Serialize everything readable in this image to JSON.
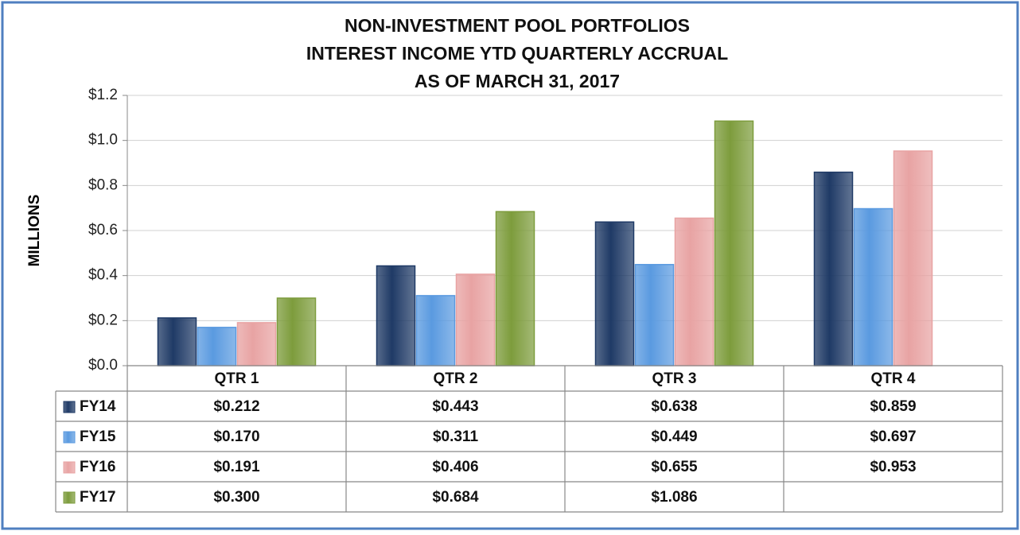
{
  "chart_data": {
    "type": "bar",
    "title": [
      "NON-INVESTMENT POOL PORTFOLIOS",
      "INTEREST INCOME YTD QUARTERLY ACCRUAL",
      "AS OF MARCH 31, 2017"
    ],
    "y_label": "MILLIONS",
    "categories": [
      "QTR 1",
      "QTR 2",
      "QTR 3",
      "QTR 4"
    ],
    "series": [
      {
        "name": "FY14",
        "color": "#1f3a66",
        "values": [
          0.212,
          0.443,
          0.638,
          0.859
        ],
        "value_labels": [
          "$0.212",
          "$0.443",
          "$0.638",
          "$0.859"
        ]
      },
      {
        "name": "FY15",
        "color": "#5a9ae0",
        "values": [
          0.17,
          0.311,
          0.449,
          0.697
        ],
        "value_labels": [
          "$0.170",
          "$0.311",
          "$0.449",
          "$0.697"
        ]
      },
      {
        "name": "FY16",
        "color": "#e8a3a3",
        "values": [
          0.191,
          0.406,
          0.655,
          0.953
        ],
        "value_labels": [
          "$0.191",
          "$0.406",
          "$0.655",
          "$0.953"
        ]
      },
      {
        "name": "FY17",
        "color": "#7d9c3c",
        "values": [
          0.3,
          0.684,
          1.086,
          null
        ],
        "value_labels": [
          "$0.300",
          "$0.684",
          "$1.086",
          null
        ]
      }
    ],
    "ylim": [
      0,
      1.2
    ],
    "yticks": [
      {
        "value": 0,
        "label": "$0.0"
      },
      {
        "value": 0.2,
        "label": "$0.2"
      },
      {
        "value": 0.4,
        "label": "$0.4"
      },
      {
        "value": 0.6,
        "label": "$0.6"
      },
      {
        "value": 0.8,
        "label": "$0.8"
      },
      {
        "value": 1.0,
        "label": "$1.0"
      },
      {
        "value": 1.2,
        "label": "$1.2"
      }
    ],
    "grid": true
  }
}
